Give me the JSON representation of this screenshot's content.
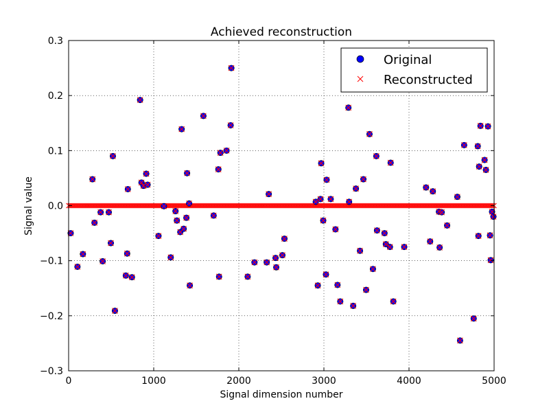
{
  "chart_data": {
    "type": "scatter",
    "title": "Achieved reconstruction",
    "xlabel": "Signal dimension number",
    "ylabel": "Signal value",
    "xlim": [
      0,
      5000
    ],
    "ylim": [
      -0.3,
      0.3
    ],
    "x_ticks": [
      0,
      1000,
      2000,
      3000,
      4000,
      5000
    ],
    "y_ticks": [
      -0.3,
      -0.2,
      -0.1,
      0.0,
      0.1,
      0.2,
      0.3
    ],
    "x_tick_labels": [
      "0",
      "1000",
      "2000",
      "3000",
      "4000",
      "5000"
    ],
    "y_tick_labels": [
      "−0.3",
      "−0.2",
      "−0.1",
      "0.0",
      "0.1",
      "0.2",
      "0.3"
    ],
    "grid": true,
    "legend_position": "top-right",
    "colors": {
      "original": "#0000ff",
      "original_edge": "#000000",
      "reconstructed": "#ff0000"
    },
    "series": [
      {
        "name": "Original",
        "marker": "circle",
        "points": [
          [
            24,
            -0.05
          ],
          [
            104,
            -0.111
          ],
          [
            168,
            -0.088
          ],
          [
            280,
            0.048
          ],
          [
            304,
            -0.031
          ],
          [
            376,
            -0.012
          ],
          [
            400,
            -0.101
          ],
          [
            472,
            -0.012
          ],
          [
            496,
            -0.068
          ],
          [
            520,
            0.09
          ],
          [
            544,
            -0.191
          ],
          [
            672,
            -0.127
          ],
          [
            688,
            -0.087
          ],
          [
            696,
            0.03
          ],
          [
            744,
            -0.13
          ],
          [
            840,
            0.192
          ],
          [
            856,
            0.042
          ],
          [
            880,
            0.036
          ],
          [
            912,
            0.058
          ],
          [
            928,
            0.038
          ],
          [
            1056,
            -0.055
          ],
          [
            1120,
            -0.001
          ],
          [
            1200,
            -0.094
          ],
          [
            1256,
            -0.01
          ],
          [
            1272,
            -0.027
          ],
          [
            1312,
            -0.048
          ],
          [
            1328,
            0.139
          ],
          [
            1352,
            -0.042
          ],
          [
            1384,
            -0.022
          ],
          [
            1392,
            0.059
          ],
          [
            1416,
            0.004
          ],
          [
            1424,
            -0.145
          ],
          [
            1584,
            0.163
          ],
          [
            1704,
            -0.018
          ],
          [
            1760,
            0.066
          ],
          [
            1768,
            -0.129
          ],
          [
            1784,
            0.096
          ],
          [
            1856,
            0.1
          ],
          [
            1904,
            0.146
          ],
          [
            1912,
            0.25
          ],
          [
            2104,
            -0.129
          ],
          [
            2184,
            -0.103
          ],
          [
            2328,
            -0.103
          ],
          [
            2352,
            0.021
          ],
          [
            2432,
            -0.095
          ],
          [
            2440,
            -0.112
          ],
          [
            2512,
            -0.09
          ],
          [
            2536,
            -0.06
          ],
          [
            2904,
            0.007
          ],
          [
            2928,
            -0.145
          ],
          [
            2960,
            0.012
          ],
          [
            2968,
            0.077
          ],
          [
            2992,
            -0.027
          ],
          [
            3024,
            -0.125
          ],
          [
            3032,
            0.047
          ],
          [
            3080,
            0.012
          ],
          [
            3136,
            -0.043
          ],
          [
            3160,
            -0.144
          ],
          [
            3192,
            -0.174
          ],
          [
            3288,
            0.178
          ],
          [
            3296,
            0.007
          ],
          [
            3344,
            -0.182
          ],
          [
            3376,
            0.031
          ],
          [
            3424,
            -0.082
          ],
          [
            3464,
            0.048
          ],
          [
            3496,
            -0.153
          ],
          [
            3536,
            0.13
          ],
          [
            3576,
            -0.115
          ],
          [
            3616,
            0.09
          ],
          [
            3624,
            -0.045
          ],
          [
            3712,
            -0.05
          ],
          [
            3728,
            -0.07
          ],
          [
            3776,
            -0.075
          ],
          [
            3784,
            0.078
          ],
          [
            3816,
            -0.174
          ],
          [
            3944,
            -0.075
          ],
          [
            4200,
            0.033
          ],
          [
            4248,
            -0.065
          ],
          [
            4280,
            0.026
          ],
          [
            4352,
            -0.011
          ],
          [
            4360,
            -0.076
          ],
          [
            4384,
            -0.012
          ],
          [
            4448,
            -0.036
          ],
          [
            4568,
            0.016
          ],
          [
            4600,
            -0.245
          ],
          [
            4648,
            0.11
          ],
          [
            4760,
            -0.205
          ],
          [
            4808,
            0.108
          ],
          [
            4816,
            -0.055
          ],
          [
            4824,
            0.071
          ],
          [
            4840,
            0.145
          ],
          [
            4888,
            0.083
          ],
          [
            4904,
            0.065
          ],
          [
            4928,
            0.144
          ],
          [
            4952,
            -0.054
          ],
          [
            4960,
            -0.099
          ],
          [
            4976,
            -0.011
          ],
          [
            4992,
            -0.02
          ]
        ]
      },
      {
        "name": "Reconstructed",
        "marker": "x",
        "points_same_as": "Original",
        "background_value": 0.0
      }
    ]
  }
}
